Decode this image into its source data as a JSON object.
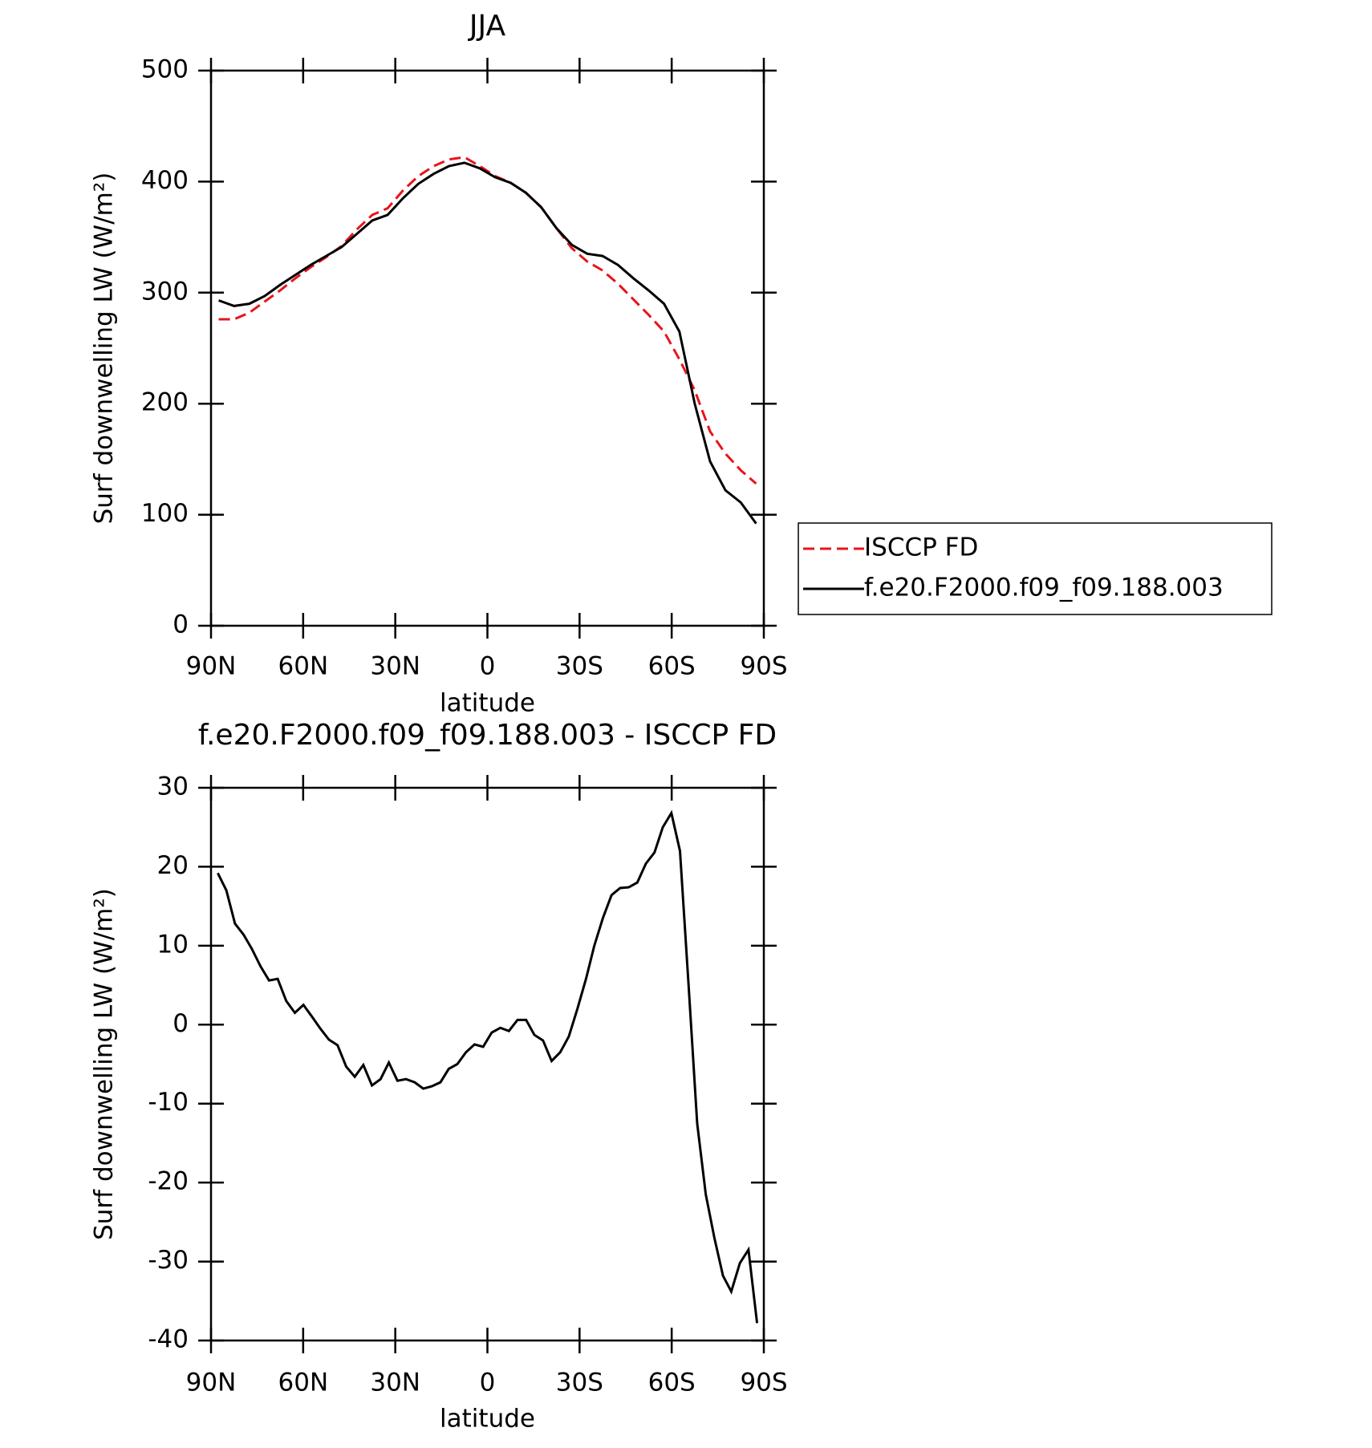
{
  "chart_data": [
    {
      "type": "line",
      "title": "JJA",
      "x_label": "latitude",
      "y_label": "Surf downwelling LW (W/m²)",
      "x": [
        87.5,
        82.5,
        77.5,
        72.5,
        67.5,
        62.5,
        57.5,
        52.5,
        47.5,
        42.5,
        37.5,
        32.5,
        27.5,
        22.5,
        17.5,
        12.5,
        7.5,
        2.5,
        -2.5,
        -7.5,
        -12.5,
        -17.5,
        -22.5,
        -27.5,
        -32.5,
        -37.5,
        -42.5,
        -47.5,
        -52.5,
        -57.5,
        -62.5,
        -67.5,
        -72.5,
        -77.5,
        -82.5,
        -87.5
      ],
      "series": [
        {
          "name": "ISCCP FD",
          "color": "#e8141b",
          "line_style": "dashed",
          "values": [
            276,
            276,
            282,
            292,
            302,
            313,
            323,
            332,
            342,
            357,
            370,
            376,
            392,
            405,
            414,
            420,
            422,
            414,
            405,
            399,
            390,
            377,
            358,
            340,
            328,
            320,
            308,
            294,
            280,
            265,
            240,
            212,
            175,
            155,
            140,
            128
          ]
        },
        {
          "name": "f.e20.F2000.f09_f09.188.003",
          "color": "#000000",
          "line_style": "solid",
          "values": [
            293,
            288,
            290,
            297,
            307,
            316,
            325,
            333,
            341,
            353,
            365,
            370,
            385,
            398,
            407,
            414,
            417,
            412,
            404,
            399,
            390,
            377,
            358,
            343,
            335,
            333,
            325,
            313,
            302,
            290,
            265,
            200,
            148,
            122,
            111,
            92
          ]
        }
      ],
      "xlim": [
        90,
        -90
      ],
      "xticks": [
        {
          "value": 90,
          "label": "90N"
        },
        {
          "value": 60,
          "label": "60N"
        },
        {
          "value": 30,
          "label": "30N"
        },
        0,
        {
          "value": -30,
          "label": "30S"
        },
        {
          "value": -60,
          "label": "60S"
        },
        {
          "value": -90,
          "label": "90S"
        }
      ],
      "ylim": [
        0,
        500
      ],
      "yticks": [
        0,
        100,
        200,
        300,
        400,
        500
      ],
      "legend": "right"
    },
    {
      "type": "line",
      "title": "f.e20.F2000.f09_f09.188.003 - ISCCP FD",
      "x_label": "latitude",
      "y_label": "Surf downwelling LW (W/m²)",
      "x": [
        87.8,
        85.0,
        82.2,
        79.4,
        76.7,
        73.9,
        71.1,
        68.3,
        65.5,
        62.7,
        59.9,
        57.1,
        54.4,
        51.6,
        48.8,
        46.0,
        43.2,
        40.4,
        37.6,
        34.8,
        32.1,
        29.3,
        26.5,
        23.7,
        20.9,
        18.1,
        15.3,
        12.6,
        9.8,
        7.0,
        4.2,
        1.4,
        -1.4,
        -4.2,
        -7.0,
        -9.8,
        -12.6,
        -15.3,
        -18.1,
        -20.9,
        -23.7,
        -26.5,
        -29.3,
        -32.1,
        -34.8,
        -37.6,
        -40.4,
        -43.2,
        -46.0,
        -48.8,
        -51.6,
        -54.4,
        -57.1,
        -59.9,
        -62.7,
        -65.5,
        -68.3,
        -71.1,
        -73.9,
        -76.7,
        -79.4,
        -82.2,
        -85.0,
        -87.8
      ],
      "values": [
        19.2,
        17.0,
        12.8,
        11.4,
        9.6,
        7.4,
        5.6,
        5.8,
        3.0,
        1.5,
        2.5,
        1.0,
        -0.5,
        -1.9,
        -2.6,
        -5.3,
        -6.6,
        -5.1,
        -7.7,
        -6.9,
        -4.8,
        -7.1,
        -6.9,
        -7.3,
        -8.1,
        -7.8,
        -7.3,
        -5.6,
        -5.0,
        -3.5,
        -2.5,
        -2.8,
        -1.0,
        -0.4,
        -0.8,
        0.6,
        0.6,
        -1.3,
        -2.0,
        -4.6,
        -3.5,
        -1.5,
        2.0,
        5.8,
        10.0,
        13.5,
        16.4,
        17.3,
        17.4,
        18.0,
        20.4,
        21.8,
        25.0,
        26.8,
        22.0,
        5.0,
        -12.5,
        -21.5,
        -27.0,
        -31.8,
        -33.8,
        -30.2,
        -28.5,
        -37.8
      ],
      "color": "#000000",
      "xlim": [
        90,
        -90
      ],
      "xticks": [
        {
          "value": 90,
          "label": "90N"
        },
        {
          "value": 60,
          "label": "60N"
        },
        {
          "value": 30,
          "label": "30N"
        },
        0,
        {
          "value": -30,
          "label": "30S"
        },
        {
          "value": -60,
          "label": "60S"
        },
        {
          "value": -90,
          "label": "90S"
        }
      ],
      "ylim": [
        -40,
        30
      ],
      "yticks": [
        -40,
        -30,
        -20,
        -10,
        0,
        10,
        20,
        30
      ]
    }
  ]
}
